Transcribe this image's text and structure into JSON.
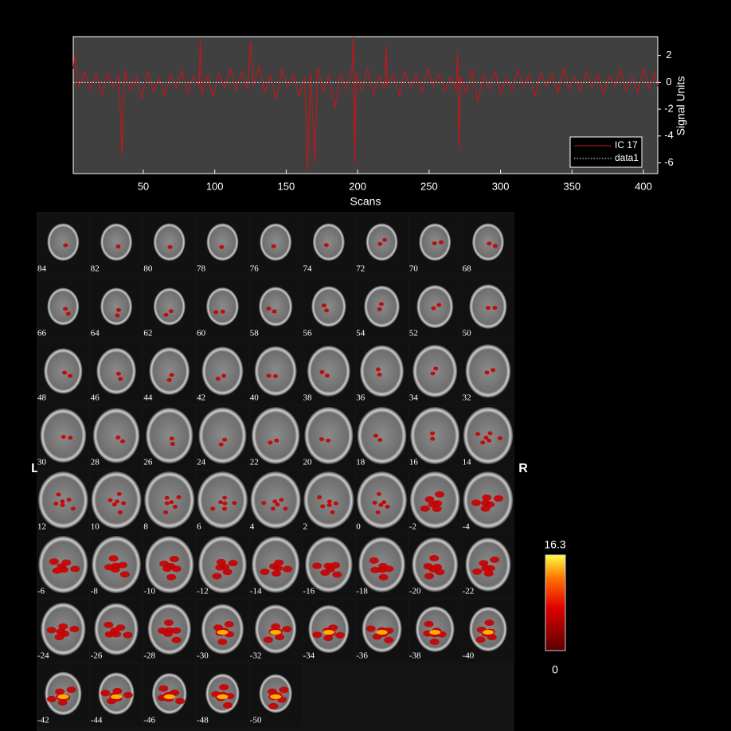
{
  "chart_data": {
    "type": "line",
    "xlabel": "Scans",
    "ylabel": "Signal Units",
    "xlim": [
      1,
      410
    ],
    "ylim": [
      -6.8,
      3.4
    ],
    "xticks": [
      50,
      100,
      150,
      200,
      250,
      300,
      350,
      400
    ],
    "yticks": [
      -6,
      -4,
      -2,
      0,
      2
    ],
    "series": [
      {
        "name": "IC 17",
        "color": "#c0161b",
        "style": "solid",
        "x": [
          1,
          2,
          5,
          9,
          13,
          17,
          21,
          25,
          29,
          33,
          35,
          37,
          41,
          45,
          49,
          53,
          57,
          61,
          65,
          69,
          73,
          77,
          81,
          85,
          89,
          90,
          91,
          95,
          99,
          103,
          107,
          111,
          115,
          119,
          123,
          125,
          127,
          131,
          135,
          139,
          143,
          147,
          151,
          155,
          159,
          163,
          165,
          167,
          170,
          172,
          176,
          180,
          184,
          188,
          192,
          196,
          197,
          198,
          199,
          203,
          207,
          211,
          215,
          219,
          220,
          221,
          225,
          229,
          233,
          237,
          241,
          245,
          249,
          253,
          257,
          261,
          265,
          269,
          270,
          271,
          272,
          276,
          280,
          284,
          288,
          292,
          296,
          300,
          304,
          308,
          312,
          316,
          320,
          324,
          328,
          332,
          336,
          340,
          344,
          348,
          352,
          356,
          360,
          364,
          368,
          372,
          376,
          380,
          384,
          388,
          392,
          396,
          400,
          404,
          408,
          410
        ],
        "values": [
          1.0,
          2.0,
          -0.3,
          0.8,
          -0.5,
          0.6,
          -0.9,
          0.7,
          -0.4,
          0.5,
          -5.4,
          0.9,
          -0.6,
          0.4,
          -1.2,
          0.8,
          -0.7,
          0.3,
          -1.0,
          0.6,
          -0.5,
          0.9,
          -0.8,
          0.4,
          -0.3,
          3.2,
          -0.9,
          0.5,
          -1.1,
          0.7,
          -0.4,
          1.0,
          -0.6,
          0.8,
          -0.5,
          3.0,
          -0.3,
          1.2,
          -0.8,
          0.5,
          -1.3,
          0.9,
          -0.4,
          0.6,
          -1.0,
          0.4,
          -6.6,
          0.8,
          -6.0,
          1.1,
          -0.7,
          0.5,
          -2.0,
          0.6,
          -0.5,
          0.9,
          3.4,
          -6.1,
          0.7,
          -0.6,
          1.0,
          -0.9,
          0.4,
          -0.5,
          2.7,
          -0.2,
          0.6,
          -1.0,
          0.8,
          -0.4,
          0.5,
          -0.8,
          1.0,
          -0.3,
          0.6,
          -0.7,
          0.4,
          -0.6,
          2.2,
          -5.0,
          0.5,
          -0.8,
          1.0,
          -1.5,
          0.6,
          -0.5,
          0.8,
          -0.9,
          0.3,
          -0.6,
          0.9,
          -0.4,
          0.5,
          -1.0,
          0.7,
          -0.3,
          0.6,
          -0.8,
          1.0,
          -0.5,
          0.4,
          -0.7,
          0.8,
          -0.4,
          0.6,
          -0.9,
          0.5,
          -0.3,
          0.9,
          -0.6,
          0.4,
          -0.8,
          1.1,
          -0.5,
          0.7,
          -0.3
        ]
      },
      {
        "name": "data1",
        "color": "#ffffff",
        "style": "dotted",
        "x": [
          1,
          410
        ],
        "values": [
          0,
          0
        ]
      }
    ],
    "legend": "lower right"
  },
  "montage": {
    "orientation_labels": [
      "L",
      "R"
    ],
    "slices": [
      84,
      82,
      80,
      78,
      76,
      74,
      72,
      70,
      68,
      66,
      64,
      62,
      60,
      58,
      56,
      54,
      52,
      50,
      48,
      46,
      44,
      42,
      40,
      38,
      36,
      34,
      32,
      30,
      28,
      26,
      24,
      22,
      20,
      18,
      16,
      14,
      12,
      10,
      8,
      6,
      4,
      2,
      0,
      -2,
      -4,
      -6,
      -8,
      -10,
      -12,
      -14,
      -16,
      -18,
      -20,
      -22,
      -24,
      -26,
      -28,
      -30,
      -32,
      -34,
      -36,
      -38,
      -40,
      -42,
      -44,
      -46,
      -48,
      -50
    ],
    "colorbar": {
      "max": 16.3,
      "min": 0
    }
  }
}
